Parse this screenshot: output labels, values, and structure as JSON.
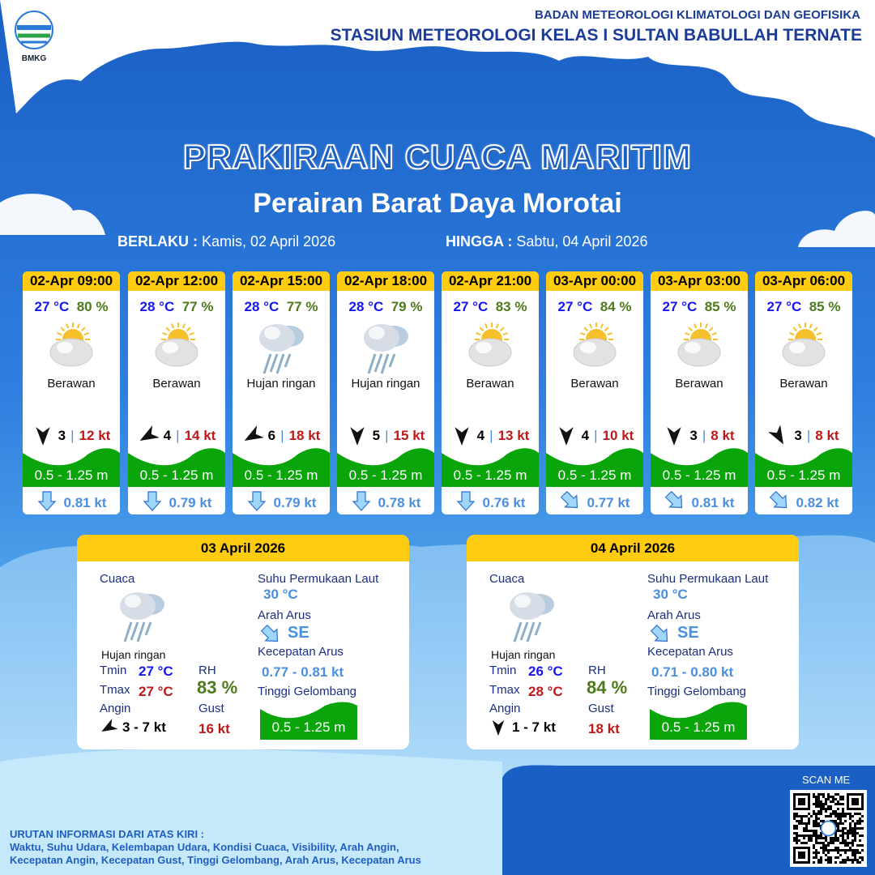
{
  "header": {
    "logo_text": "BMKG",
    "org_line1": "BADAN METEOROLOGI KLIMATOLOGI DAN GEOFISIKA",
    "org_line2": "STASIUN METEOROLOGI KELAS I SULTAN BABULLAH TERNATE"
  },
  "title": "PRAKIRAAN CUACA MARITIM",
  "subtitle": "Perairan Barat Daya Morotai",
  "validity": {
    "from_label": "BERLAKU :",
    "from_value": "Kamis, 02 April 2026",
    "to_label": "HINGGA :",
    "to_value": "Sabtu, 04 April 2026"
  },
  "colors": {
    "header_yellow": "#ffcc11",
    "wave_green": "#0aa50a",
    "temp_blue": "#1616ee",
    "rh_green": "#4d7a1a",
    "gust_red": "#c01818",
    "current_blue": "#4a8fe0"
  },
  "forecasts": [
    {
      "time": "02-Apr 09:00",
      "temp": "27 °C",
      "rh": "80 %",
      "icon": "partly-cloudy-icon",
      "cond": "Berawan",
      "wind_dir_deg": 180,
      "wind": "3",
      "gust": "12 kt",
      "wave": "0.5 - 1.25 m",
      "current_icon": "arrow-down-icon",
      "current": "0.81 kt"
    },
    {
      "time": "02-Apr 12:00",
      "temp": "28 °C",
      "rh": "77 %",
      "icon": "partly-cloudy-icon",
      "cond": "Berawan",
      "wind_dir_deg": 240,
      "wind": "4",
      "gust": "14 kt",
      "wave": "0.5 - 1.25 m",
      "current_icon": "arrow-down-icon",
      "current": "0.79 kt"
    },
    {
      "time": "02-Apr 15:00",
      "temp": "28 °C",
      "rh": "77 %",
      "icon": "light-rain-icon",
      "cond": "Hujan ringan",
      "wind_dir_deg": 240,
      "wind": "6",
      "gust": "18 kt",
      "wave": "0.5 - 1.25 m",
      "current_icon": "arrow-down-icon",
      "current": "0.79 kt"
    },
    {
      "time": "02-Apr 18:00",
      "temp": "28 °C",
      "rh": "79 %",
      "icon": "light-rain-icon",
      "cond": "Hujan ringan",
      "wind_dir_deg": 180,
      "wind": "5",
      "gust": "15 kt",
      "wave": "0.5 - 1.25 m",
      "current_icon": "arrow-down-icon",
      "current": "0.78 kt"
    },
    {
      "time": "02-Apr 21:00",
      "temp": "27 °C",
      "rh": "83 %",
      "icon": "partly-cloudy-icon",
      "cond": "Berawan",
      "wind_dir_deg": 180,
      "wind": "4",
      "gust": "13 kt",
      "wave": "0.5 - 1.25 m",
      "current_icon": "arrow-down-icon",
      "current": "0.76 kt"
    },
    {
      "time": "03-Apr 00:00",
      "temp": "27 °C",
      "rh": "84 %",
      "icon": "partly-cloudy-icon",
      "cond": "Berawan",
      "wind_dir_deg": 180,
      "wind": "4",
      "gust": "10 kt",
      "wave": "0.5 - 1.25 m",
      "current_icon": "arrow-southeast-icon",
      "current": "0.77 kt"
    },
    {
      "time": "03-Apr 03:00",
      "temp": "27 °C",
      "rh": "85 %",
      "icon": "partly-cloudy-icon",
      "cond": "Berawan",
      "wind_dir_deg": 180,
      "wind": "3",
      "gust": "8 kt",
      "wave": "0.5 - 1.25 m",
      "current_icon": "arrow-southeast-icon",
      "current": "0.81 kt"
    },
    {
      "time": "03-Apr 06:00",
      "temp": "27 °C",
      "rh": "85 %",
      "icon": "partly-cloudy-icon",
      "cond": "Berawan",
      "wind_dir_deg": 150,
      "wind": "3",
      "gust": "8 kt",
      "wave": "0.5 - 1.25 m",
      "current_icon": "arrow-southeast-icon",
      "current": "0.82 kt"
    }
  ],
  "labels": {
    "cuaca": "Cuaca",
    "sst": "Suhu Permukaan Laut",
    "arah_arus": "Arah Arus",
    "kec_arus": "Kecepatan Arus",
    "tinggi": "Tinggi Gelombang",
    "tmin": "Tmin",
    "tmax": "Tmax",
    "rh": "RH",
    "angin": "Angin",
    "gust": "Gust"
  },
  "daily": [
    {
      "date": "03 April 2026",
      "cond": "Hujan ringan",
      "icon": "light-rain-icon",
      "tmin": "27 °C",
      "tmax": "27 °C",
      "rh": "83 %",
      "wind_dir_deg": 240,
      "wind": "3  - 7 kt",
      "gust": "16 kt",
      "sst": "30 °C",
      "current_dir": "SE",
      "current_speed": "0.77 - 0.81 kt",
      "wave": "0.5 - 1.25 m"
    },
    {
      "date": "04 April 2026",
      "cond": "Hujan ringan",
      "icon": "light-rain-icon",
      "tmin": "26 °C",
      "tmax": "28 °C",
      "rh": "84 %",
      "wind_dir_deg": 180,
      "wind": "1  - 7 kt",
      "gust": "18 kt",
      "sst": "30 °C",
      "current_dir": "SE",
      "current_speed": "0.71 - 0.80 kt",
      "wave": "0.5 - 1.25 m"
    }
  ],
  "qr": {
    "label": "SCAN ME"
  },
  "footer": {
    "line1": "URUTAN INFORMASI DARI ATAS KIRI :",
    "line2": "Waktu, Suhu Udara, Kelembapan Udara, Kondisi Cuaca, Visibility, Arah Angin,",
    "line3": "Kecepatan Angin, Kecepatan Gust, Tinggi Gelombang, Arah Arus, Kecepatan Arus"
  }
}
